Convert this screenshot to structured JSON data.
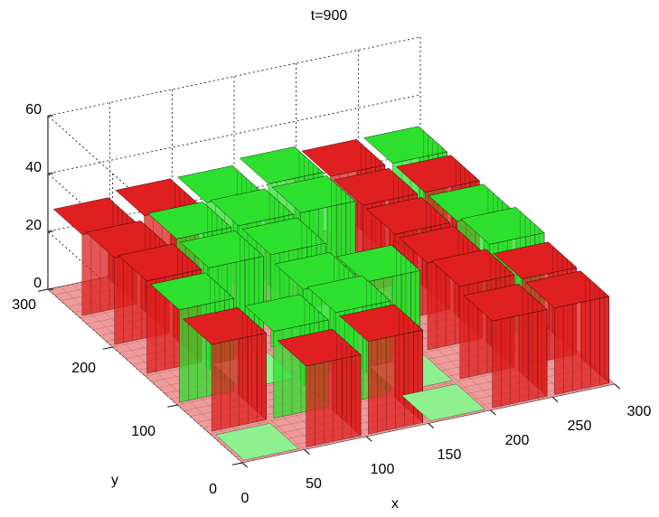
{
  "chart_data": {
    "type": "surface",
    "title": "t=900",
    "xlabel": "x",
    "ylabel": "y",
    "zlabel": "",
    "xlim": [
      0,
      300
    ],
    "ylim": [
      0,
      300
    ],
    "zlim": [
      0,
      60
    ],
    "x_ticks": [
      "0",
      "50",
      "100",
      "150",
      "200",
      "250",
      "300"
    ],
    "y_ticks": [
      "0",
      "100",
      "200",
      "300"
    ],
    "z_ticks": [
      "0",
      "20",
      "40",
      "60"
    ],
    "grid": true,
    "colors": {
      "species_1": "#2ee02e",
      "species_2": "#e02020",
      "floor_1": "#8ff08f",
      "floor_2": "#f09a9a",
      "edge": "#000000"
    },
    "surface_grid": {
      "note": "approximate peak heights per 6x6 block of the x-y plane (rows: y from 0 to 300, cols: x from 0 to 300)",
      "heights": [
        [
          0,
          28,
          32,
          0,
          30,
          30
        ],
        [
          30,
          30,
          32,
          0,
          32,
          30
        ],
        [
          32,
          0,
          30,
          28,
          30,
          32
        ],
        [
          32,
          32,
          32,
          0,
          30,
          30
        ],
        [
          30,
          32,
          32,
          32,
          30,
          30
        ],
        [
          28,
          30,
          30,
          32,
          30,
          30
        ]
      ],
      "species": [
        [
          "g",
          "r",
          "r",
          "g",
          "r",
          "r"
        ],
        [
          "r",
          "g",
          "g",
          "g",
          "r",
          "r"
        ],
        [
          "g",
          "g",
          "g",
          "g",
          "r",
          "g"
        ],
        [
          "r",
          "g",
          "g",
          "g",
          "r",
          "g"
        ],
        [
          "r",
          "g",
          "g",
          "g",
          "r",
          "r"
        ],
        [
          "r",
          "r",
          "g",
          "g",
          "r",
          "g"
        ]
      ]
    }
  }
}
